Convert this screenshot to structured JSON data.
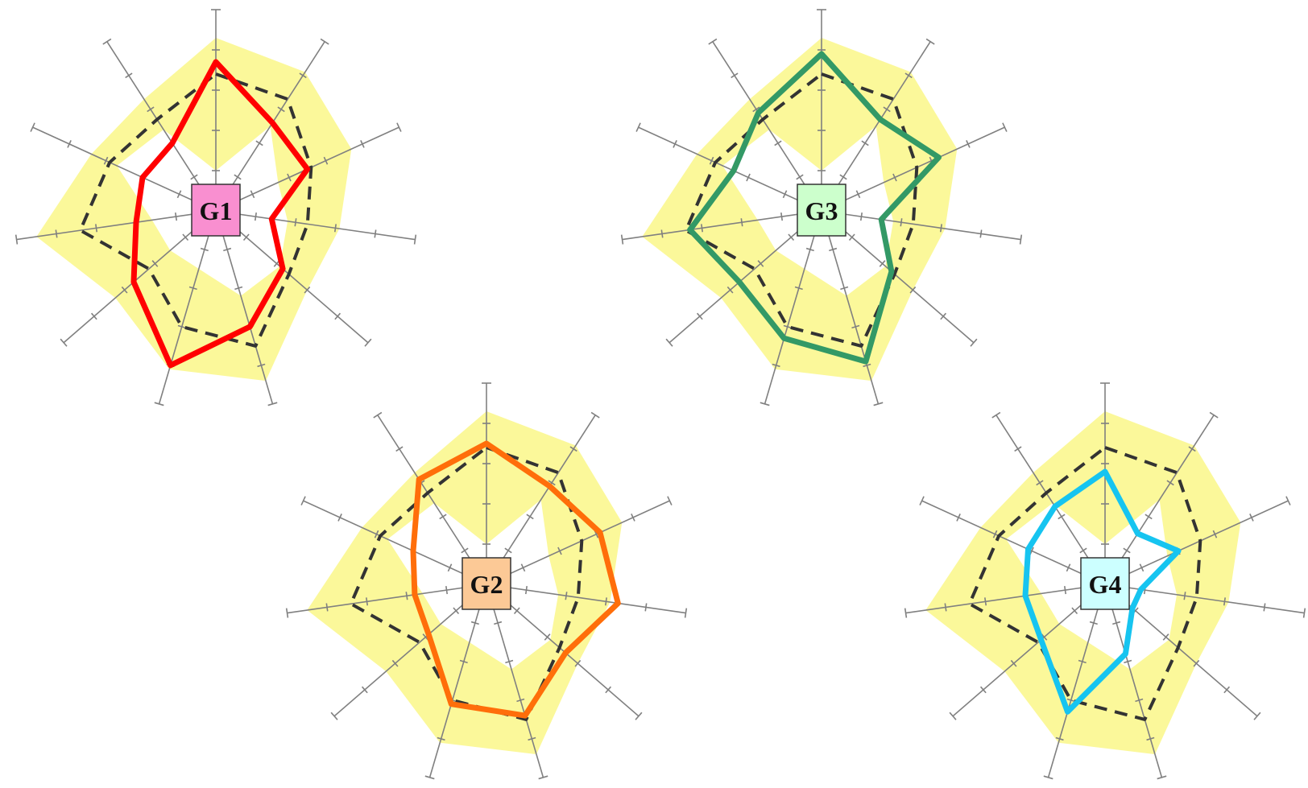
{
  "colors": {
    "band": "#fbf89a",
    "axis": "#808080",
    "mean_line": "#333333",
    "label_border": "#333333"
  },
  "chart_data": [
    {
      "type": "radar",
      "label": "G1",
      "label_color": "#f98fd0",
      "line_color": "#ff0000",
      "axes": 11,
      "scale_max": 5,
      "grid": false,
      "band_low": [
        1,
        2.5,
        1.7,
        1.8,
        2.1,
        2.2,
        1.5,
        1.5,
        1.6,
        2.7,
        2.4
      ],
      "band_high": [
        4.3,
        4.1,
        3.7,
        3.1,
        3.0,
        4.4,
        4.1,
        3.3,
        4.5,
        3.4,
        3.3
      ],
      "mean": [
        3.4,
        3.3,
        2.6,
        2.3,
        2.4,
        3.5,
        3.0,
        2.2,
        3.4,
        2.9,
        2.7
      ],
      "values": [
        3.7,
        2.6,
        2.5,
        1.4,
        2.2,
        3.0,
        4.0,
        2.7,
        2.0,
        2.0,
        2.0
      ]
    },
    {
      "type": "radar",
      "label": "G2",
      "label_color": "#fcc996",
      "line_color": "#ff6e0a",
      "axes": 11,
      "scale_max": 5,
      "grid": false,
      "band_low": [
        1,
        2.5,
        1.7,
        1.8,
        2.1,
        2.2,
        1.5,
        1.5,
        1.6,
        2.7,
        2.4
      ],
      "band_high": [
        4.3,
        4.1,
        3.7,
        3.1,
        3.0,
        4.4,
        4.1,
        3.3,
        4.5,
        3.4,
        3.3
      ],
      "mean": [
        3.4,
        3.3,
        2.6,
        2.3,
        2.4,
        3.5,
        3.0,
        2.2,
        3.4,
        2.9,
        2.7
      ],
      "values": [
        3.5,
        2.9,
        3.1,
        3.3,
        2.6,
        3.4,
        3.1,
        1.9,
        1.8,
        2.0,
        3.1
      ]
    },
    {
      "type": "radar",
      "label": "G3",
      "label_color": "#ccffcc",
      "line_color": "#339966",
      "axes": 11,
      "scale_max": 5,
      "grid": false,
      "band_low": [
        1,
        2.5,
        1.7,
        1.8,
        2.1,
        2.2,
        1.5,
        1.5,
        1.6,
        2.7,
        2.4
      ],
      "band_high": [
        4.3,
        4.1,
        3.7,
        3.1,
        3.0,
        4.4,
        4.1,
        3.3,
        4.5,
        3.4,
        3.3
      ],
      "mean": [
        3.4,
        3.3,
        2.6,
        2.3,
        2.4,
        3.5,
        3.0,
        2.2,
        3.4,
        2.9,
        2.7
      ],
      "values": [
        3.9,
        2.7,
        3.2,
        1.5,
        2.3,
        3.9,
        3.3,
        2.7,
        3.3,
        2.4,
        2.9
      ]
    },
    {
      "type": "radar",
      "label": "G4",
      "label_color": "#ccffff",
      "line_color": "#16c4f0",
      "axes": 11,
      "scale_max": 5,
      "grid": false,
      "band_low": [
        1,
        2.5,
        1.7,
        1.8,
        2.1,
        2.2,
        1.5,
        1.5,
        1.6,
        2.7,
        2.4
      ],
      "band_high": [
        4.3,
        4.1,
        3.7,
        3.1,
        3.0,
        4.4,
        4.1,
        3.3,
        4.5,
        3.4,
        3.3
      ],
      "mean": [
        3.4,
        3.3,
        2.6,
        2.3,
        2.4,
        3.5,
        3.0,
        2.2,
        3.4,
        2.9,
        2.7
      ],
      "values": [
        2.8,
        1.5,
        2.0,
        0.9,
        0.9,
        1.8,
        3.3,
        2.1,
        2.0,
        2.1,
        2.3
      ]
    }
  ]
}
